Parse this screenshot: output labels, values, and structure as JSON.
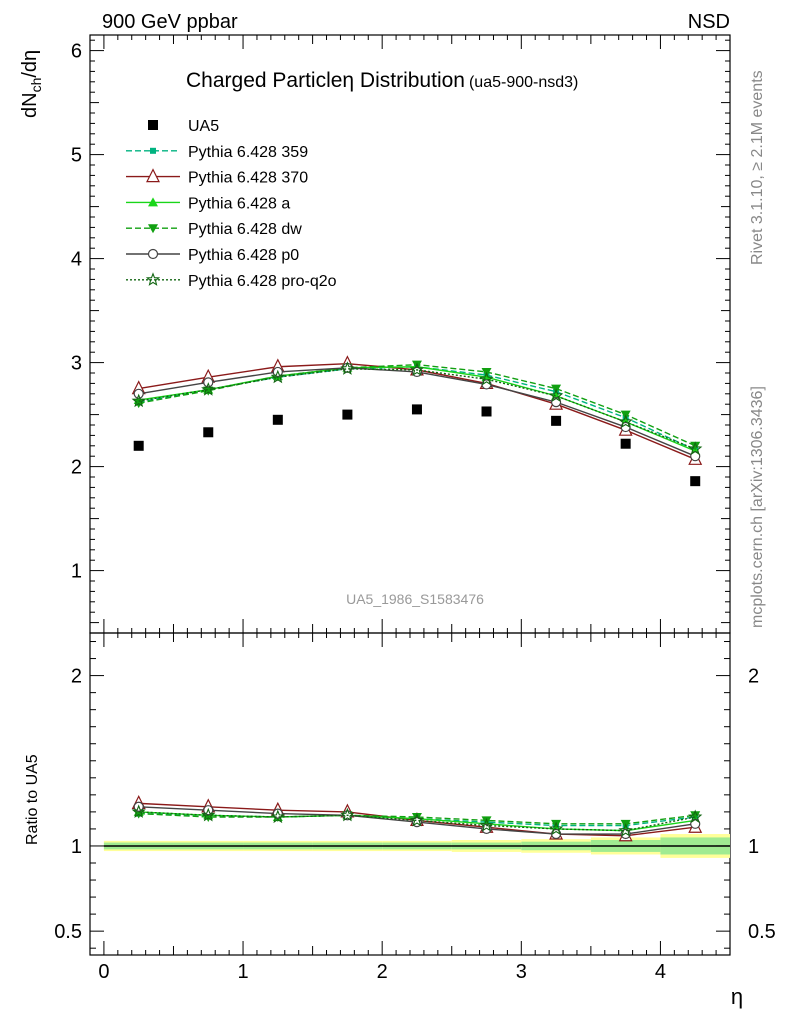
{
  "header": {
    "left": "900 GeV ppbar",
    "right": "NSD",
    "side_top": "Rivet 3.1.10, ≥ 2.1M events",
    "side_bottom": "mcplots.cern.ch [arXiv:1306.3436]"
  },
  "main_title": "Charged Particleη Distribution",
  "main_subtitle": "(ua5-900-nsd3)",
  "watermark": "UA5_1986_S1583476",
  "chart_data": [
    {
      "type": "line",
      "panel": "main",
      "ylabel": "dN_ch/dη",
      "ylim": [
        0.4,
        6.15
      ],
      "yticks": [
        1,
        2,
        3,
        4,
        5,
        6
      ],
      "xlim": [
        -0.1,
        4.5
      ],
      "x": [
        0.25,
        0.75,
        1.25,
        1.75,
        2.25,
        2.75,
        3.25,
        3.75,
        4.25
      ],
      "data": {
        "name": "UA5",
        "values": [
          2.2,
          2.33,
          2.45,
          2.5,
          2.55,
          2.53,
          2.44,
          2.22,
          1.86
        ]
      },
      "series": [
        {
          "name": "Pythia 6.428 359",
          "color": "#00b380",
          "dash": "6,3",
          "marker": "square-small",
          "values": [
            2.62,
            2.74,
            2.86,
            2.94,
            2.96,
            2.88,
            2.72,
            2.47,
            2.16
          ]
        },
        {
          "name": "Pythia 6.428 370",
          "color": "#8b1a1a",
          "dash": "",
          "marker": "triangle-open",
          "values": [
            2.75,
            2.86,
            2.96,
            2.99,
            2.93,
            2.8,
            2.6,
            2.35,
            2.07
          ]
        },
        {
          "name": "Pythia 6.428 a",
          "color": "#19d619",
          "dash": "",
          "marker": "triangle",
          "values": [
            2.64,
            2.74,
            2.87,
            2.95,
            2.96,
            2.86,
            2.68,
            2.43,
            2.15
          ]
        },
        {
          "name": "Pythia 6.428 dw",
          "color": "#11a011",
          "dash": "6,3",
          "marker": "triangle-down",
          "values": [
            2.61,
            2.73,
            2.87,
            2.95,
            2.98,
            2.91,
            2.75,
            2.5,
            2.2
          ]
        },
        {
          "name": "Pythia 6.428 p0",
          "color": "#444444",
          "dash": "",
          "marker": "circle-open",
          "values": [
            2.7,
            2.81,
            2.91,
            2.95,
            2.91,
            2.79,
            2.62,
            2.38,
            2.1
          ]
        },
        {
          "name": "Pythia 6.428 pro-q2o",
          "color": "#116611",
          "dash": "2,2",
          "marker": "star",
          "values": [
            2.63,
            2.74,
            2.86,
            2.94,
            2.93,
            2.84,
            2.68,
            2.43,
            2.17
          ]
        }
      ]
    },
    {
      "type": "line",
      "panel": "ratio",
      "ylabel": "Ratio to UA5",
      "xlabel": "η",
      "ylim": [
        0.36,
        2.25
      ],
      "yticks": [
        0.5,
        1,
        2
      ],
      "ytick_labels": [
        "0.5",
        "1",
        "2"
      ],
      "xticks": [
        0,
        1,
        2,
        3,
        4
      ],
      "x": [
        0.25,
        0.75,
        1.25,
        1.75,
        2.25,
        2.75,
        3.25,
        3.75,
        4.25
      ],
      "uncertainty_bands": {
        "x_edges": [
          0,
          0.5,
          1,
          1.5,
          2,
          2.5,
          3,
          3.5,
          4,
          4.5
        ],
        "inner_green": [
          0.02,
          0.02,
          0.02,
          0.02,
          0.02,
          0.02,
          0.025,
          0.035,
          0.05
        ],
        "outer_yellow": [
          0.03,
          0.03,
          0.03,
          0.03,
          0.03,
          0.035,
          0.04,
          0.05,
          0.07
        ]
      },
      "series": [
        {
          "name": "Pythia 6.428 359",
          "values": [
            1.19,
            1.18,
            1.17,
            1.18,
            1.16,
            1.14,
            1.12,
            1.12,
            1.17
          ]
        },
        {
          "name": "Pythia 6.428 370",
          "values": [
            1.25,
            1.23,
            1.21,
            1.2,
            1.15,
            1.11,
            1.07,
            1.06,
            1.11
          ]
        },
        {
          "name": "Pythia 6.428 a",
          "values": [
            1.2,
            1.18,
            1.17,
            1.18,
            1.16,
            1.13,
            1.1,
            1.09,
            1.15
          ]
        },
        {
          "name": "Pythia 6.428 dw",
          "values": [
            1.19,
            1.17,
            1.17,
            1.18,
            1.17,
            1.15,
            1.13,
            1.13,
            1.18
          ]
        },
        {
          "name": "Pythia 6.428 p0",
          "values": [
            1.23,
            1.21,
            1.19,
            1.18,
            1.14,
            1.1,
            1.07,
            1.07,
            1.13
          ]
        },
        {
          "name": "Pythia 6.428 pro-q2o",
          "values": [
            1.2,
            1.18,
            1.17,
            1.18,
            1.15,
            1.12,
            1.1,
            1.09,
            1.17
          ]
        }
      ]
    }
  ]
}
